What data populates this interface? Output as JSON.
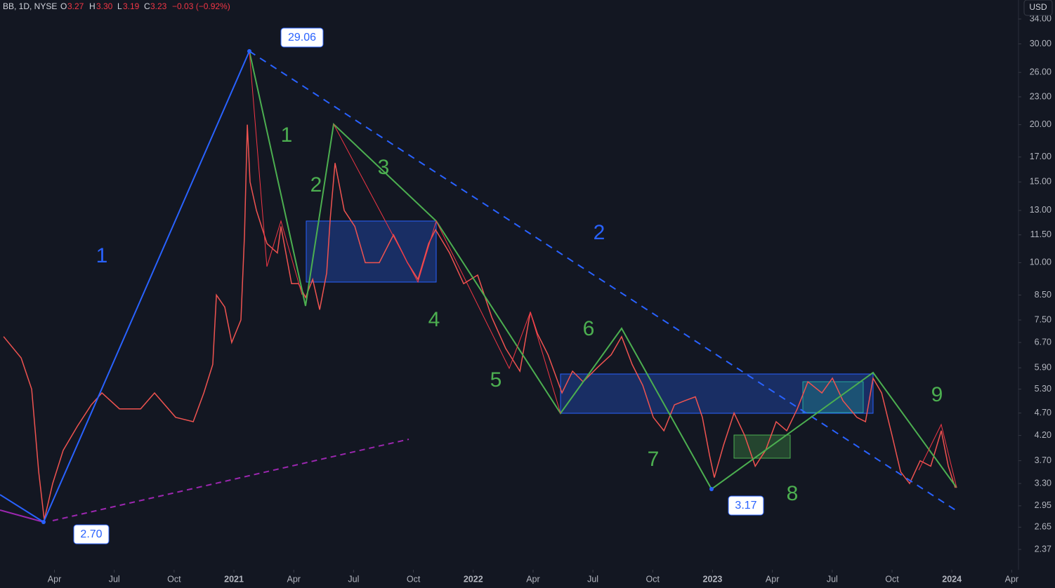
{
  "header": {
    "symbol": "BB, 1D, NYSE",
    "open_label": "O",
    "open": "3.27",
    "high_label": "H",
    "high": "3.30",
    "low_label": "L",
    "low": "3.19",
    "close_label": "C",
    "close": "3.23",
    "change": "−0.03 (−0.92%)",
    "currency": "USD"
  },
  "annotations": {
    "price_labels": [
      "29.06",
      "2.70",
      "3.17"
    ],
    "green_waves": [
      "1",
      "2",
      "3",
      "4",
      "5",
      "6",
      "7",
      "8",
      "9"
    ],
    "blue_waves": [
      "1",
      "2"
    ]
  },
  "chart_data": {
    "type": "line",
    "yscale": "log",
    "color": "#ef5350",
    "x": [
      0.45,
      1.33,
      1.86,
      2.21,
      2.49,
      2.91,
      3.44,
      4.15,
      4.85,
      5.38,
      6.26,
      7.32,
      8.02,
      9.08,
      9.96,
      10.49,
      10.94,
      11.12,
      11.54,
      11.89,
      12.35,
      12.53,
      12.67,
      12.81,
      13.13,
      13.66,
      14.18,
      14.36,
      14.89,
      15.24,
      15.59,
      15.95,
      16.3,
      16.65,
      16.83,
      17.07,
      17.53,
      18.06,
      18.59,
      19.29,
      20.0,
      20.7,
      21.23,
      21.76,
      22.11,
      22.81,
      23.52,
      24.22,
      24.93,
      25.63,
      26.34,
      26.86,
      27.22,
      27.75,
      28.45,
      28.98,
      29.51,
      30.21,
      30.92,
      31.44,
      31.97,
      32.5,
      33.03,
      33.56,
      34.09,
      34.61,
      35.14,
      35.49,
      35.85,
      36.09,
      36.55,
      37.08,
      37.61,
      38.14,
      38.66,
      39.19,
      39.72,
      40.25,
      40.78,
      41.48,
      42.01,
      42.54,
      43.24,
      43.67,
      44.05,
      44.48,
      45.0,
      45.43,
      45.88,
      46.41,
      46.94,
      47.47,
      47.82,
      48.17
    ],
    "values": [
      6.9,
      6.2,
      5.3,
      3.5,
      2.75,
      3.3,
      3.9,
      4.4,
      4.9,
      5.2,
      4.8,
      4.8,
      5.2,
      4.6,
      4.5,
      5.2,
      6.0,
      8.5,
      8.0,
      6.7,
      7.5,
      11.5,
      20,
      15,
      13,
      11,
      10.5,
      12,
      9,
      9,
      8.4,
      9.2,
      7.9,
      9.5,
      12.5,
      16.5,
      13,
      12,
      10,
      10,
      11.5,
      10,
      9.2,
      11,
      11.8,
      10.5,
      9,
      9.4,
      7.6,
      6.5,
      5.8,
      7.8,
      7,
      6.3,
      5.2,
      5.8,
      5.5,
      5.9,
      6.3,
      6.9,
      6.0,
      5.4,
      4.6,
      4.3,
      4.9,
      5.0,
      5.1,
      4.6,
      3.8,
      3.4,
      4.0,
      4.7,
      4.2,
      3.6,
      3.9,
      4.5,
      4.3,
      4.8,
      5.5,
      5.2,
      5.6,
      5.0,
      4.6,
      4.5,
      5.6,
      5.2,
      4.2,
      3.5,
      3.3,
      3.7,
      3.6,
      4.3,
      3.6,
      3.23
    ],
    "xlim": [
      0.27,
      51.34
    ],
    "ylim": [
      2.14,
      37.4
    ],
    "xticks": [
      {
        "value": 3,
        "label": "Apr"
      },
      {
        "value": 6,
        "label": "Jul"
      },
      {
        "value": 9,
        "label": "Oct"
      },
      {
        "value": 12,
        "label": "2021"
      },
      {
        "value": 15,
        "label": "Apr"
      },
      {
        "value": 18,
        "label": "Jul"
      },
      {
        "value": 21,
        "label": "Oct"
      },
      {
        "value": 24,
        "label": "2022"
      },
      {
        "value": 27,
        "label": "Apr"
      },
      {
        "value": 30,
        "label": "Jul"
      },
      {
        "value": 33,
        "label": "Oct"
      },
      {
        "value": 36,
        "label": "2023"
      },
      {
        "value": 39,
        "label": "Apr"
      },
      {
        "value": 42,
        "label": "Jul"
      },
      {
        "value": 45,
        "label": "Oct"
      },
      {
        "value": 48,
        "label": "2024"
      },
      {
        "value": 51,
        "label": "Apr"
      }
    ],
    "yticks": [
      {
        "value": 34,
        "label": "34.00"
      },
      {
        "value": 30,
        "label": "30.00"
      },
      {
        "value": 26,
        "label": "26.00"
      },
      {
        "value": 23,
        "label": "23.00"
      },
      {
        "value": 20,
        "label": "20.00"
      },
      {
        "value": 17,
        "label": "17.00"
      },
      {
        "value": 15,
        "label": "15.00"
      },
      {
        "value": 13,
        "label": "13.00"
      },
      {
        "value": 11.5,
        "label": "11.50"
      },
      {
        "value": 10,
        "label": "10.00"
      },
      {
        "value": 8.5,
        "label": "8.50"
      },
      {
        "value": 7.5,
        "label": "7.50"
      },
      {
        "value": 6.7,
        "label": "6.70"
      },
      {
        "value": 5.9,
        "label": "5.90"
      },
      {
        "value": 5.3,
        "label": "5.30"
      },
      {
        "value": 4.7,
        "label": "4.70"
      },
      {
        "value": 4.2,
        "label": "4.20"
      },
      {
        "value": 3.7,
        "label": "3.70"
      },
      {
        "value": 3.3,
        "label": "3.30"
      },
      {
        "value": 2.95,
        "label": "2.95"
      },
      {
        "value": 2.65,
        "label": "2.65"
      },
      {
        "value": 2.37,
        "label": "2.37"
      }
    ]
  }
}
